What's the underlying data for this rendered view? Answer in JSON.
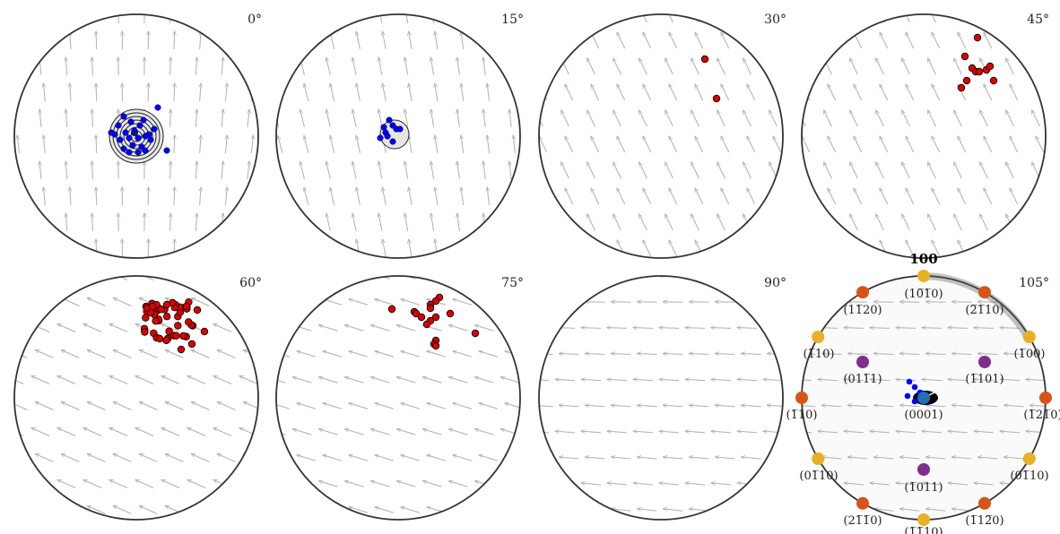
{
  "figure": {
    "panels": [
      {
        "angle": "0°",
        "field": "up",
        "overlay": "contours-blue"
      },
      {
        "angle": "15°",
        "field": "up-tilt",
        "overlay": "blue-small"
      },
      {
        "angle": "30°",
        "field": "diag",
        "overlay": "red-two"
      },
      {
        "angle": "45°",
        "field": "diag",
        "overlay": "red-cluster-small"
      },
      {
        "angle": "60°",
        "field": "diag-flat",
        "overlay": "red-cluster-large"
      },
      {
        "angle": "75°",
        "field": "diag-flatter",
        "overlay": "red-spread"
      },
      {
        "angle": "90°",
        "field": "left",
        "overlay": "none"
      },
      {
        "angle": "105°",
        "field": "left",
        "overlay": "crystal"
      }
    ],
    "crystal_panel": {
      "pole_title": "100",
      "poles": [
        {
          "label": "(10̅1̅0)",
          "color": "#E8B024",
          "family": "prism-1"
        },
        {
          "label": "(2̅1̅10)",
          "color": "#D95319",
          "family": "prism-2"
        },
        {
          "label": "(1̅00)",
          "color": "#E8B024",
          "family": "prism-1"
        },
        {
          "label": "(1̅21̅0)",
          "color": "#D95319",
          "family": "prism-2"
        },
        {
          "label": "(01̅10)",
          "color": "#E8B024",
          "family": "prism-1"
        },
        {
          "label": "(1̅12̅0)",
          "color": "#D95319",
          "family": "prism-2"
        },
        {
          "label": "(1̅1̅10)",
          "color": "#E8B024",
          "family": "prism-1"
        },
        {
          "label": "(21̅1̅0)",
          "color": "#D95319",
          "family": "prism-2"
        },
        {
          "label": "(01̅10)",
          "color": "#E8B024",
          "family": "prism-1"
        },
        {
          "label": "(1̅10)",
          "color": "#D95319",
          "family": "prism-2"
        },
        {
          "label": "(1̅10)",
          "color": "#E8B024",
          "family": "prism-1"
        },
        {
          "label": "(11̅20)",
          "color": "#D95319",
          "family": "prism-2"
        }
      ],
      "pyramid_poles": [
        {
          "label": "(011̅1)",
          "color": "#7E2F8E"
        },
        {
          "label": "(1̅101)",
          "color": "#7E2F8E"
        },
        {
          "label": "(1̅011)",
          "color": "#7E2F8E"
        }
      ],
      "basal_pole": {
        "label": "(0001)",
        "color": "#1f6fb5"
      }
    },
    "colors": {
      "circle": "#333333",
      "arrow": "#b0b0b0",
      "blue_points": "#0000ff",
      "red_points": "#dd0000",
      "contour": "#222222"
    }
  }
}
